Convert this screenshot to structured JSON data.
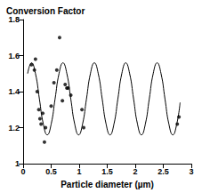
{
  "chart_data": {
    "type": "scatter",
    "title": "Conversion Factor",
    "x_label": "Particle diameter (µm)",
    "xlim": [
      0,
      3
    ],
    "xticks": [
      0,
      0.5,
      1,
      1.5,
      2,
      2.5,
      3
    ],
    "ylim": [
      1,
      1.8
    ],
    "yticks": [
      1,
      1.2,
      1.4,
      1.6,
      1.8
    ],
    "grid": false,
    "series": [
      {
        "type": "scatter",
        "color": "#000000",
        "marker": "circle",
        "x": [
          0.15,
          0.2,
          0.22,
          0.25,
          0.28,
          0.3,
          0.32,
          0.35,
          0.38,
          0.4,
          0.5,
          0.55,
          0.6,
          0.65,
          0.7,
          0.75,
          0.78,
          0.8,
          0.85,
          1.05,
          1.08,
          2.75,
          2.78
        ],
        "values": [
          1.55,
          1.52,
          1.58,
          1.4,
          1.3,
          1.25,
          1.22,
          1.28,
          1.12,
          1.2,
          1.32,
          1.45,
          1.52,
          1.7,
          1.35,
          1.44,
          1.42,
          1.42,
          1.38,
          1.3,
          1.2,
          1.22,
          1.26
        ]
      },
      {
        "type": "line",
        "color": "#000000",
        "line_style": "solid",
        "x": [
          0.08,
          0.15,
          0.22,
          0.29,
          0.36,
          0.43,
          0.5,
          0.57,
          0.64,
          0.71,
          0.78,
          0.85,
          0.92,
          0.99,
          1.06,
          1.13,
          1.2,
          1.27,
          1.34,
          1.41,
          1.48,
          1.55,
          1.62,
          1.69,
          1.76,
          1.83,
          1.9,
          1.97,
          2.04,
          2.11,
          2.18,
          2.25,
          2.32,
          2.39,
          2.46,
          2.53,
          2.6,
          2.67,
          2.74,
          2.8
        ],
        "values": [
          1.5,
          1.56,
          1.5,
          1.36,
          1.22,
          1.16,
          1.22,
          1.36,
          1.5,
          1.56,
          1.5,
          1.36,
          1.22,
          1.16,
          1.22,
          1.36,
          1.5,
          1.56,
          1.5,
          1.36,
          1.22,
          1.16,
          1.22,
          1.36,
          1.5,
          1.56,
          1.5,
          1.36,
          1.22,
          1.16,
          1.22,
          1.36,
          1.5,
          1.56,
          1.5,
          1.36,
          1.22,
          1.16,
          1.22,
          1.34
        ]
      }
    ]
  }
}
